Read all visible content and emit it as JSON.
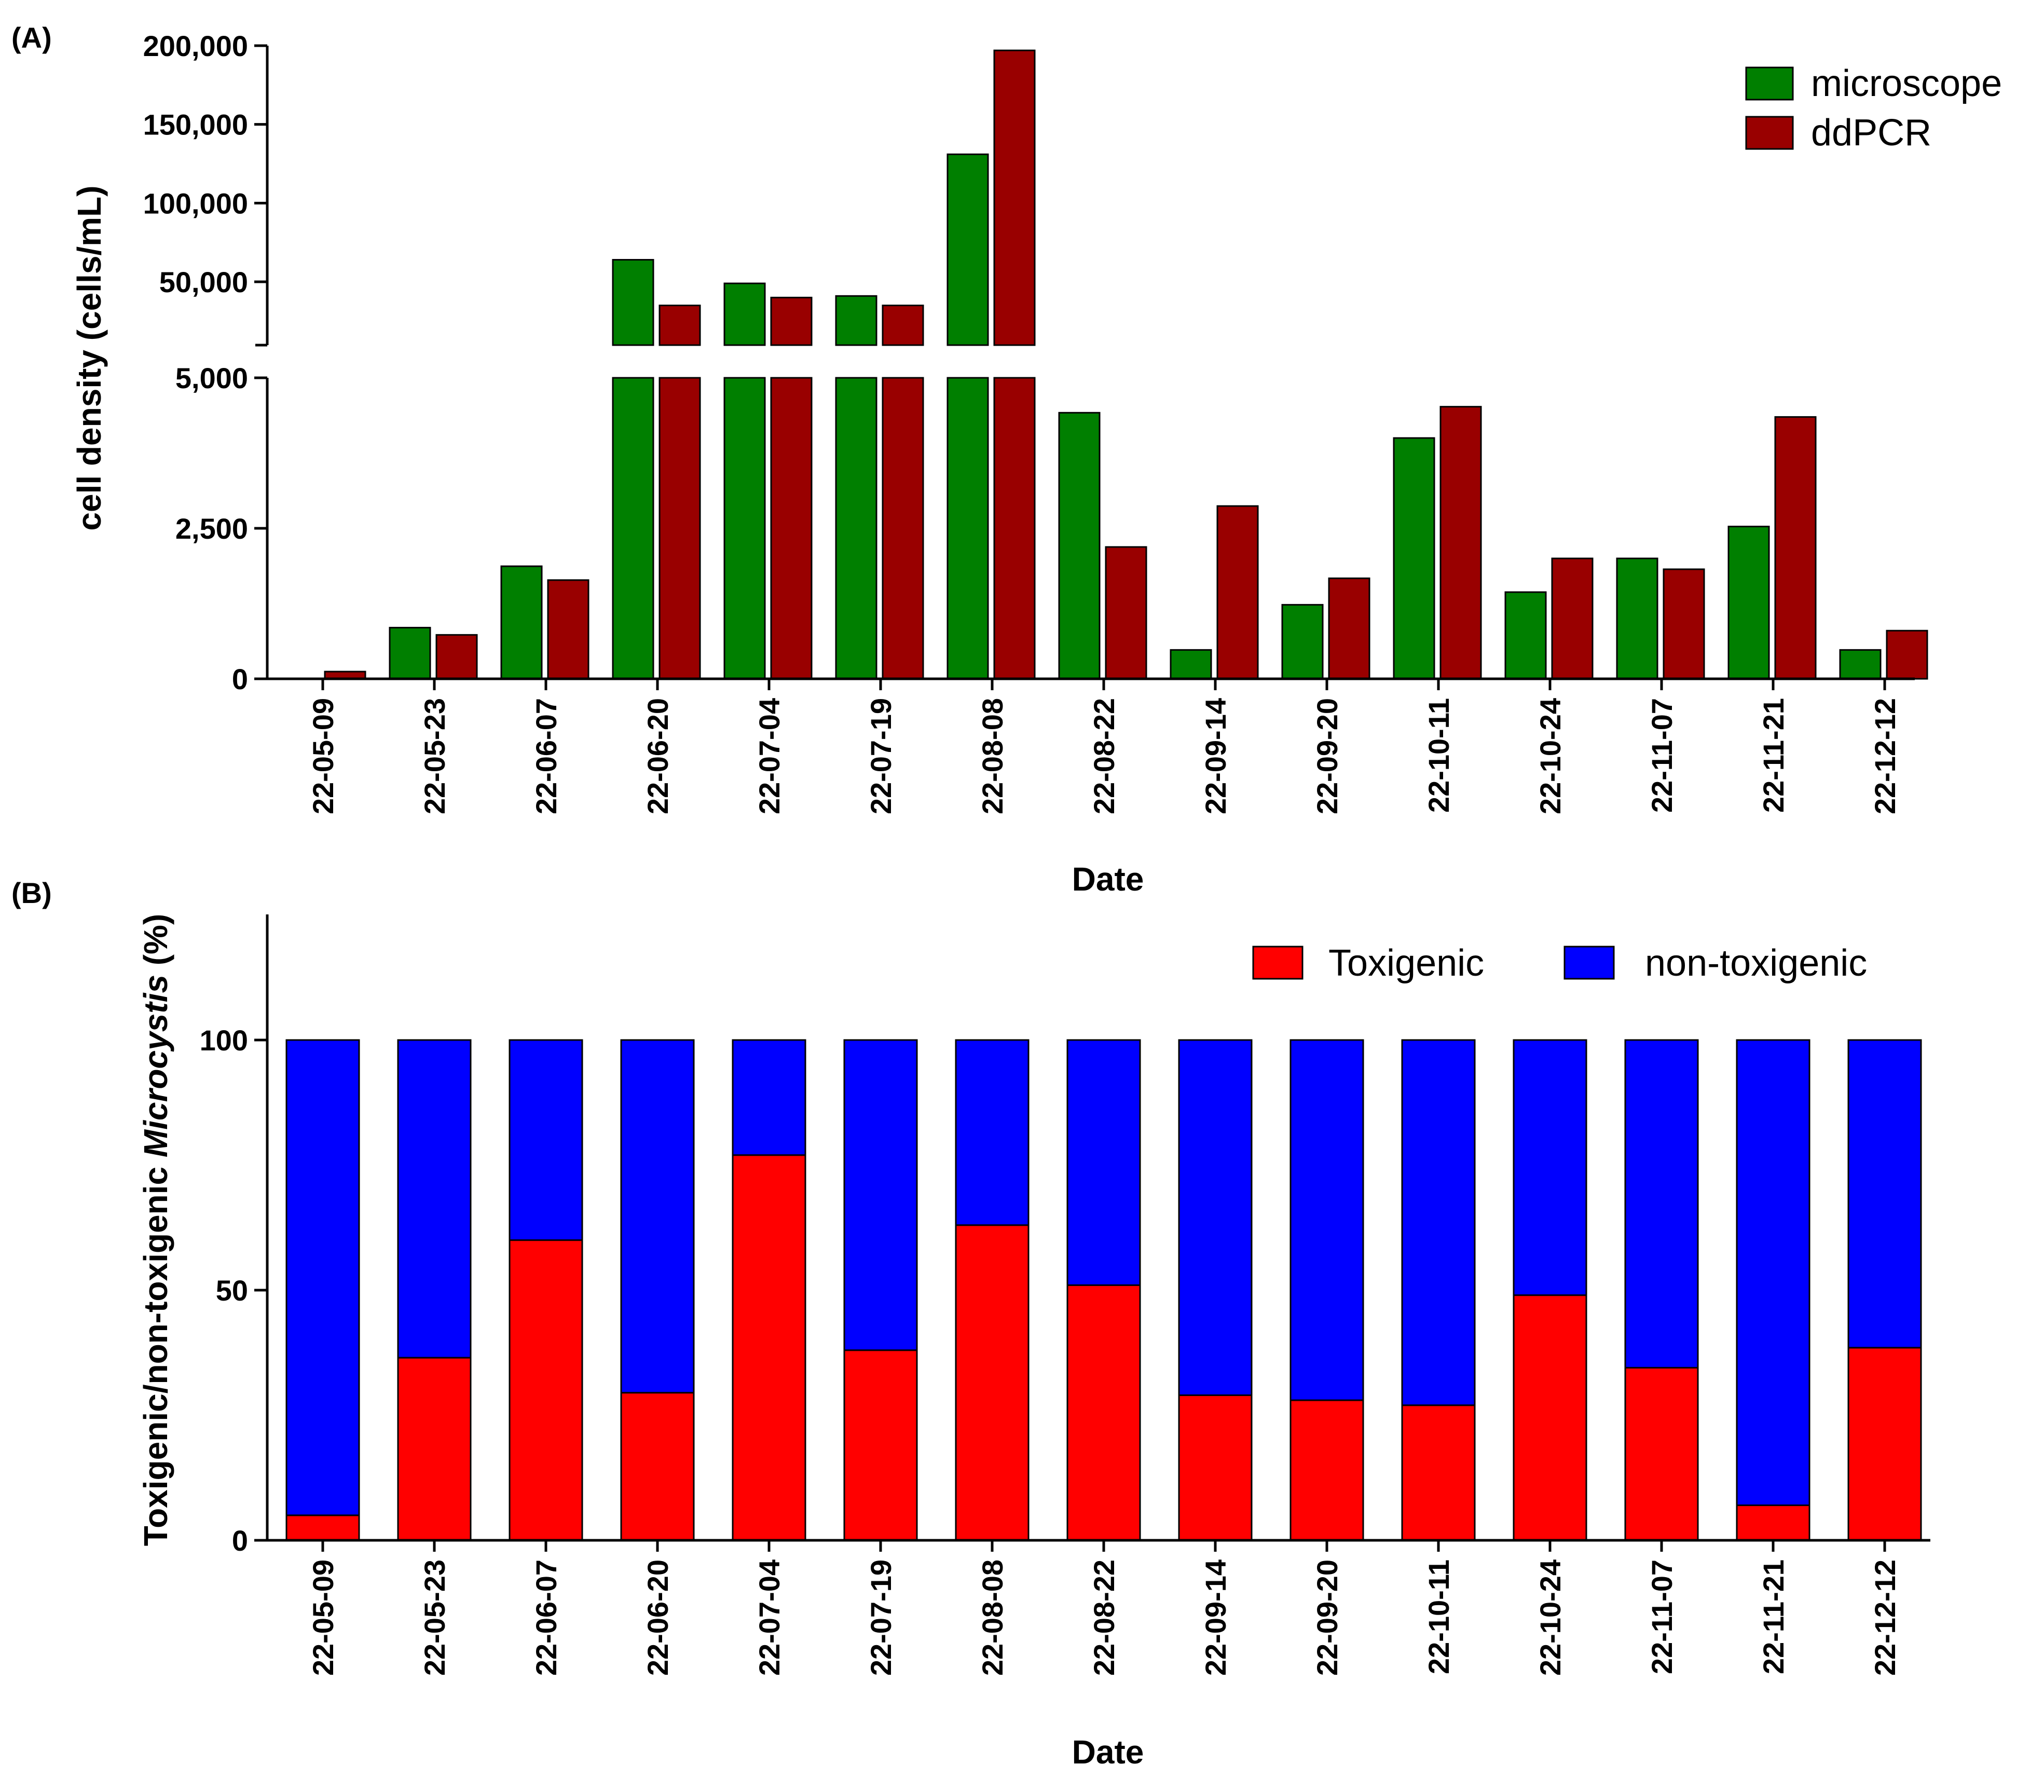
{
  "chart_data": [
    {
      "panel_label": "(A)",
      "type": "bar",
      "ylabel": "cell density (cells/mL)",
      "xlabel": "Date",
      "categories": [
        "22-05-09",
        "22-05-23",
        "22-06-07",
        "22-06-20",
        "22-07-04",
        "22-07-19",
        "22-08-08",
        "22-08-22",
        "22-09-14",
        "22-09-20",
        "22-10-11",
        "22-10-24",
        "22-11-07",
        "22-11-21",
        "22-12-12"
      ],
      "series": [
        {
          "name": "microscope",
          "color": "#007f00",
          "values": [
            0,
            850,
            1870,
            64000,
            49000,
            41000,
            131000,
            4420,
            480,
            1230,
            4000,
            1440,
            2000,
            2530,
            480
          ]
        },
        {
          "name": "ddPCR",
          "color": "#990000",
          "values": [
            120,
            730,
            1640,
            35000,
            40000,
            35000,
            197000,
            2190,
            2870,
            1670,
            4520,
            2000,
            1820,
            4350,
            800
          ]
        }
      ],
      "y_axis_break": {
        "lower": {
          "ylim": [
            0,
            5000
          ],
          "ticks": [
            0,
            2500,
            5000
          ],
          "tick_labels": [
            "0",
            "2,500",
            "5,000"
          ]
        },
        "upper": {
          "ylim": [
            5000,
            200000
          ],
          "ticks": [
            50000,
            100000,
            150000,
            200000
          ],
          "tick_labels": [
            "50,000",
            "100,000",
            "150,000",
            "200,000"
          ]
        }
      },
      "legend": {
        "position": "top-right",
        "entries": [
          "microscope",
          "ddPCR"
        ]
      }
    },
    {
      "panel_label": "(B)",
      "type": "stacked bar",
      "ylabel": "Toxigenic/non-toxigenic Microcystis (%)",
      "ylabel_plain": "Toxigenic/non-toxigenic ",
      "ylabel_italic": "Microcystis",
      "ylabel_suffix": " (%)",
      "xlabel": "Date",
      "categories": [
        "22-05-09",
        "22-05-23",
        "22-06-07",
        "22-06-20",
        "22-07-04",
        "22-07-19",
        "22-08-08",
        "22-08-22",
        "22-09-14",
        "22-09-20",
        "22-10-11",
        "22-10-24",
        "22-11-07",
        "22-11-21",
        "22-12-12"
      ],
      "series": [
        {
          "name": "Toxigenic",
          "color": "#ff0000",
          "values": [
            5,
            36.5,
            60,
            29.5,
            77,
            38,
            63,
            51,
            29,
            28,
            27,
            49,
            34.5,
            7,
            38.5
          ]
        },
        {
          "name": "non-toxigenic",
          "color": "#0000ff",
          "values": [
            95,
            63.5,
            40,
            70.5,
            23,
            62,
            37,
            49,
            71,
            72,
            73,
            51,
            65.5,
            93,
            61.5
          ]
        }
      ],
      "ylim": [
        0,
        125
      ],
      "ticks": [
        0,
        50,
        100
      ],
      "tick_labels": [
        "0",
        "50",
        "100"
      ],
      "legend": {
        "position": "top-right",
        "entries": [
          "Toxigenic",
          "non-toxigenic"
        ]
      }
    }
  ]
}
